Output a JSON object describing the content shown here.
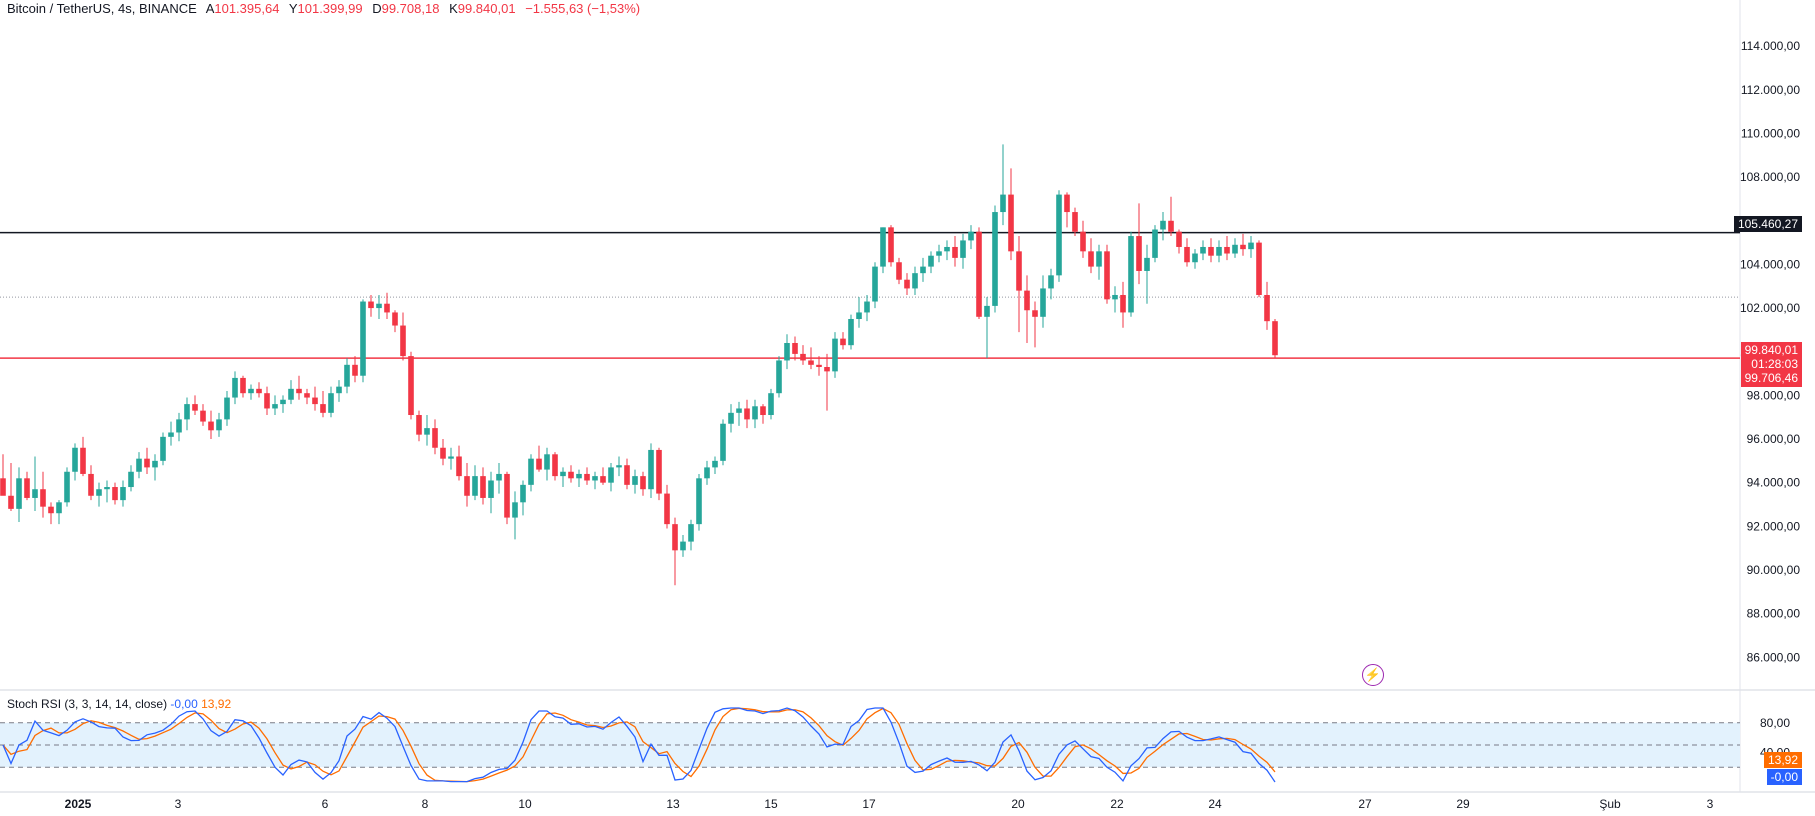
{
  "header": {
    "symbol": "Bitcoin / TetherUS, 4s, BINANCE",
    "open_label": "A",
    "open": "101.395,64",
    "high_label": "Y",
    "high": "101.399,99",
    "low_label": "D",
    "low": "99.708,18",
    "close_label": "K",
    "close": "99.840,01",
    "change": "−1.555,63 (−1,53%)"
  },
  "indicator": {
    "name": "Stoch RSI (3, 3, 14, 14, close)",
    "k_value": "-0,00",
    "d_value": "13,92"
  },
  "price_badges": {
    "resistance": "105.460,27",
    "last_price": "99.840,01",
    "countdown": "01:28:03",
    "support": "99.706,46"
  },
  "rsi_badges": {
    "d": "13,92",
    "k": "-0,00"
  },
  "colors": {
    "up": "#26a69a",
    "down": "#f23645",
    "rsi_k": "#2962ff",
    "rsi_d": "#ff6d00",
    "support": "#f23645",
    "resistance": "#131722",
    "rsi_band": "#e3f2fd"
  },
  "icons": {
    "alert": "flash-icon"
  },
  "chart_data": {
    "type": "candlestick",
    "title": "Bitcoin / TetherUS, 4s, BINANCE",
    "y_ticks": [
      "86.000,00",
      "88.000,00",
      "90.000,00",
      "92.000,00",
      "94.000,00",
      "96.000,00",
      "98.000,00",
      "100.000,00",
      "102.000,00",
      "104.000,00",
      "106.000,00",
      "108.000,00",
      "110.000,00",
      "112.000,00",
      "114.000,00"
    ],
    "x_ticks": [
      "2025",
      "3",
      "6",
      "8",
      "10",
      "13",
      "15",
      "17",
      "20",
      "22",
      "24",
      "27",
      "29",
      "Şub",
      "3"
    ],
    "ylim": [
      84500,
      115200
    ],
    "horizontal_lines": [
      105460,
      99706,
      102500
    ],
    "candles": [
      [
        94200,
        95300,
        93600,
        93400
      ],
      [
        93400,
        94900,
        92700,
        92800
      ],
      [
        92800,
        94700,
        92200,
        94200
      ],
      [
        94200,
        94500,
        93200,
        93300
      ],
      [
        93300,
        95200,
        92700,
        93700
      ],
      [
        93700,
        94500,
        92400,
        92900
      ],
      [
        92900,
        93100,
        92100,
        92600
      ],
      [
        92600,
        93200,
        92100,
        93100
      ],
      [
        93100,
        94700,
        92900,
        94500
      ],
      [
        94500,
        95800,
        94100,
        95600
      ],
      [
        95600,
        96100,
        94300,
        94400
      ],
      [
        94400,
        94800,
        93200,
        93400
      ],
      [
        93400,
        94000,
        92900,
        93700
      ],
      [
        93700,
        94100,
        93100,
        93800
      ],
      [
        93800,
        94000,
        93000,
        93200
      ],
      [
        93200,
        94100,
        92900,
        93800
      ],
      [
        93800,
        94800,
        93600,
        94500
      ],
      [
        94500,
        95400,
        94200,
        95100
      ],
      [
        95100,
        95600,
        94400,
        94700
      ],
      [
        94700,
        95300,
        94100,
        95000
      ],
      [
        95000,
        96300,
        94800,
        96100
      ],
      [
        96100,
        96800,
        95700,
        96300
      ],
      [
        96300,
        97200,
        95900,
        96900
      ],
      [
        96900,
        97900,
        96400,
        97600
      ],
      [
        97600,
        98000,
        97100,
        97300
      ],
      [
        97300,
        97600,
        96600,
        96800
      ],
      [
        96800,
        97300,
        96000,
        96400
      ],
      [
        96400,
        97200,
        96100,
        96900
      ],
      [
        96900,
        98200,
        96600,
        97900
      ],
      [
        97900,
        99100,
        97600,
        98800
      ],
      [
        98800,
        98900,
        97900,
        98100
      ],
      [
        98100,
        98500,
        97800,
        98300
      ],
      [
        98300,
        98600,
        97900,
        98100
      ],
      [
        98100,
        98400,
        97100,
        97400
      ],
      [
        97400,
        98000,
        97100,
        97600
      ],
      [
        97600,
        98000,
        97200,
        97800
      ],
      [
        97800,
        98700,
        97600,
        98300
      ],
      [
        98300,
        98900,
        97800,
        98100
      ],
      [
        98100,
        98300,
        97600,
        97900
      ],
      [
        97900,
        98400,
        97300,
        97600
      ],
      [
        97600,
        98200,
        97000,
        97200
      ],
      [
        97200,
        98400,
        97000,
        98100
      ],
      [
        98100,
        98700,
        97700,
        98400
      ],
      [
        98400,
        99700,
        98100,
        99400
      ],
      [
        99400,
        99800,
        98600,
        98900
      ],
      [
        98900,
        102400,
        98600,
        102300
      ],
      [
        102300,
        102600,
        101600,
        102000
      ],
      [
        102000,
        102600,
        101500,
        102200
      ],
      [
        102200,
        102700,
        101500,
        101800
      ],
      [
        101800,
        101900,
        100900,
        101200
      ],
      [
        101200,
        101800,
        99600,
        99800
      ],
      [
        99800,
        100000,
        96900,
        97100
      ],
      [
        97100,
        97300,
        95900,
        96200
      ],
      [
        96200,
        97100,
        95700,
        96500
      ],
      [
        96500,
        96900,
        95300,
        95600
      ],
      [
        95600,
        96000,
        94800,
        95100
      ],
      [
        95100,
        95600,
        94600,
        95200
      ],
      [
        95200,
        95700,
        94100,
        94300
      ],
      [
        94300,
        94900,
        92900,
        93400
      ],
      [
        93400,
        94800,
        93200,
        94300
      ],
      [
        94300,
        94700,
        93000,
        93300
      ],
      [
        93300,
        94500,
        92600,
        94100
      ],
      [
        94100,
        94900,
        93500,
        94400
      ],
      [
        94400,
        94500,
        92100,
        92400
      ],
      [
        92400,
        93600,
        91400,
        93100
      ],
      [
        93100,
        94100,
        92500,
        93900
      ],
      [
        93900,
        95300,
        93600,
        95100
      ],
      [
        95100,
        95700,
        94500,
        94600
      ],
      [
        94600,
        95600,
        94100,
        95300
      ],
      [
        95300,
        95400,
        94100,
        94300
      ],
      [
        94300,
        94700,
        93800,
        94500
      ],
      [
        94500,
        94800,
        94000,
        94200
      ],
      [
        94200,
        94600,
        93800,
        94400
      ],
      [
        94400,
        94700,
        93900,
        94100
      ],
      [
        94100,
        94500,
        93700,
        94300
      ],
      [
        94300,
        94700,
        93900,
        94000
      ],
      [
        94000,
        94900,
        93600,
        94700
      ],
      [
        94700,
        95200,
        94300,
        94800
      ],
      [
        94800,
        95100,
        93700,
        93900
      ],
      [
        93900,
        94600,
        93500,
        94300
      ],
      [
        94300,
        94500,
        93400,
        93700
      ],
      [
        93700,
        95800,
        93300,
        95500
      ],
      [
        95500,
        95600,
        93200,
        93500
      ],
      [
        93500,
        93900,
        91900,
        92100
      ],
      [
        92100,
        92400,
        89300,
        90900
      ],
      [
        90900,
        91600,
        90600,
        91300
      ],
      [
        91300,
        92300,
        90900,
        92100
      ],
      [
        92100,
        94400,
        91800,
        94200
      ],
      [
        94200,
        95000,
        93900,
        94700
      ],
      [
        94700,
        95200,
        94400,
        95000
      ],
      [
        95000,
        96900,
        94800,
        96700
      ],
      [
        96700,
        97600,
        96300,
        97200
      ],
      [
        97200,
        97700,
        96600,
        97400
      ],
      [
        97400,
        97800,
        96500,
        96900
      ],
      [
        96900,
        97800,
        96500,
        97500
      ],
      [
        97500,
        97600,
        96700,
        97100
      ],
      [
        97100,
        98300,
        96900,
        98100
      ],
      [
        98100,
        99800,
        97900,
        99600
      ],
      [
        99600,
        100800,
        99200,
        100400
      ],
      [
        100400,
        100700,
        99600,
        99900
      ],
      [
        99900,
        100300,
        99400,
        99600
      ],
      [
        99600,
        100200,
        99200,
        99400
      ],
      [
        99400,
        99800,
        98900,
        99300
      ],
      [
        99300,
        99900,
        97300,
        99100
      ],
      [
        99100,
        100900,
        98800,
        100600
      ],
      [
        100600,
        100900,
        100100,
        100300
      ],
      [
        100300,
        101700,
        100100,
        101500
      ],
      [
        101500,
        102500,
        101100,
        101800
      ],
      [
        101800,
        102600,
        101400,
        102300
      ],
      [
        102300,
        104100,
        102000,
        103900
      ],
      [
        103900,
        105700,
        103600,
        105700
      ],
      [
        105700,
        105800,
        103900,
        104100
      ],
      [
        104100,
        104300,
        103100,
        103300
      ],
      [
        103300,
        103600,
        102600,
        102900
      ],
      [
        102900,
        103900,
        102600,
        103600
      ],
      [
        103600,
        104300,
        103200,
        103900
      ],
      [
        103900,
        104600,
        103600,
        104400
      ],
      [
        104400,
        104900,
        104100,
        104600
      ],
      [
        104600,
        105100,
        104200,
        104800
      ],
      [
        104800,
        105300,
        103900,
        104300
      ],
      [
        104300,
        105400,
        103800,
        105100
      ],
      [
        105100,
        105800,
        104700,
        105500
      ],
      [
        105500,
        105700,
        101500,
        101600
      ],
      [
        101600,
        102500,
        99700,
        102100
      ],
      [
        102100,
        106700,
        101800,
        106400
      ],
      [
        106400,
        109500,
        105800,
        107200
      ],
      [
        107200,
        108400,
        104200,
        104600
      ],
      [
        104600,
        105300,
        100900,
        102800
      ],
      [
        102800,
        103500,
        100400,
        101900
      ],
      [
        101900,
        102300,
        100200,
        101600
      ],
      [
        101600,
        103500,
        101100,
        102900
      ],
      [
        102900,
        103800,
        102400,
        103500
      ],
      [
        103500,
        107400,
        103200,
        107200
      ],
      [
        107200,
        107300,
        105700,
        106400
      ],
      [
        106400,
        106600,
        105300,
        105500
      ],
      [
        105500,
        106000,
        104300,
        104600
      ],
      [
        104600,
        105200,
        103600,
        103900
      ],
      [
        103900,
        104900,
        103300,
        104600
      ],
      [
        104600,
        104900,
        102200,
        102400
      ],
      [
        102400,
        103000,
        101800,
        102600
      ],
      [
        102600,
        103200,
        101100,
        101800
      ],
      [
        101800,
        105500,
        101600,
        105300
      ],
      [
        105300,
        106800,
        103100,
        103700
      ],
      [
        103700,
        104900,
        102200,
        104300
      ],
      [
        104300,
        105800,
        104100,
        105600
      ],
      [
        105600,
        106400,
        105100,
        106000
      ],
      [
        106000,
        107100,
        105300,
        105500
      ],
      [
        105500,
        105600,
        104500,
        104800
      ],
      [
        104800,
        105200,
        103900,
        104100
      ],
      [
        104100,
        104700,
        103800,
        104500
      ],
      [
        104500,
        105100,
        104200,
        104800
      ],
      [
        104800,
        105200,
        104100,
        104400
      ],
      [
        104400,
        105100,
        104100,
        104800
      ],
      [
        104800,
        105300,
        104200,
        104500
      ],
      [
        104500,
        105200,
        104300,
        104900
      ],
      [
        104900,
        105400,
        104400,
        104700
      ],
      [
        104700,
        105300,
        104300,
        105000
      ],
      [
        105000,
        105100,
        102500,
        102600
      ],
      [
        102600,
        103200,
        101000,
        101400
      ],
      [
        101400,
        101500,
        99700,
        99840
      ]
    ]
  }
}
